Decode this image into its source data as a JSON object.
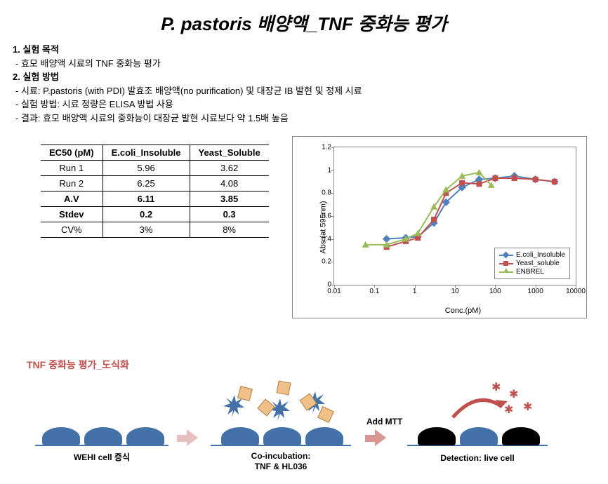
{
  "title": "P. pastoris 배양액_TNF 중화능 평가",
  "section1": {
    "head": "1. 실험 목적",
    "line1": "효모 배양액 시료의 TNF 중화능 평가"
  },
  "section2": {
    "head": "2. 실험 방법",
    "line1": "시료: P.pastoris (with PDI) 발효조 배양액(no purification) 및 대장균 IB 발현 및 정제 시료",
    "line2": "실험 방법: 시료 정량은 ELISA 방법 사용",
    "line3": "결과: 효모 배양액 시료의 중화능이 대장균 발현 시료보다 약 1.5배 높음"
  },
  "table": {
    "headers": [
      "EC50 (pM)",
      "E.coli_Insoluble",
      "Yeast_Soluble"
    ],
    "rows": [
      {
        "label": "Run 1",
        "c1": "5.96",
        "c2": "3.62",
        "bold": false
      },
      {
        "label": "Run 2",
        "c1": "6.25",
        "c2": "4.08",
        "bold": false
      },
      {
        "label": "A.V",
        "c1": "6.11",
        "c2": "3.85",
        "bold": true
      },
      {
        "label": "Stdev",
        "c1": "0.2",
        "c2": "0.3",
        "bold": true
      },
      {
        "label": "CV%",
        "c1": "3%",
        "c2": "8%",
        "bold": false
      }
    ]
  },
  "chart": {
    "type": "line",
    "xlabel": "Conc.(pM)",
    "ylabel": "Abs (at 595nm)",
    "xscale": "log",
    "xlim": [
      0.01,
      10000
    ],
    "ylim": [
      0,
      1.2
    ],
    "yticks": [
      0,
      0.2,
      0.4,
      0.6,
      0.8,
      1,
      1.2
    ],
    "xticks": [
      0.01,
      0.1,
      1,
      10,
      100,
      1000,
      10000
    ],
    "background_color": "#ffffff",
    "border_color": "#888888",
    "series": [
      {
        "name": "E.coli_Insoluble",
        "color": "#4f81bd",
        "marker": "diamond",
        "x": [
          0.2,
          0.6,
          1.2,
          3,
          6,
          15,
          40,
          100,
          300,
          1000,
          3000
        ],
        "y": [
          0.4,
          0.41,
          0.42,
          0.54,
          0.72,
          0.85,
          0.92,
          0.93,
          0.95,
          0.92,
          0.9
        ]
      },
      {
        "name": "Yeast_soluble",
        "color": "#c0504d",
        "marker": "square",
        "x": [
          0.2,
          0.6,
          1.2,
          3,
          6,
          15,
          40,
          100,
          300,
          1000,
          3000
        ],
        "y": [
          0.33,
          0.38,
          0.41,
          0.57,
          0.8,
          0.89,
          0.88,
          0.93,
          0.93,
          0.92,
          0.9
        ]
      },
      {
        "name": "ENBREL",
        "color": "#9bbb59",
        "marker": "triangle",
        "x": [
          0.06,
          0.2,
          0.6,
          1.2,
          3,
          6,
          15,
          40,
          80
        ],
        "y": [
          0.35,
          0.35,
          0.4,
          0.45,
          0.68,
          0.83,
          0.95,
          0.98,
          0.87
        ]
      }
    ]
  },
  "diagram": {
    "title": "TNF 중화능 평가_도식화",
    "stage1": "WEHI cell 증식",
    "stage2": "Co-incubation:\nTNF & HL036",
    "stage3": "Detection: live cell",
    "add_mtt": "Add MTT",
    "cell_color": "#4472a8",
    "arrow_color": "#d99694",
    "arrow_dark": "#c0504d",
    "square_fill": "#f0c088",
    "star_color": "#c0504d"
  }
}
